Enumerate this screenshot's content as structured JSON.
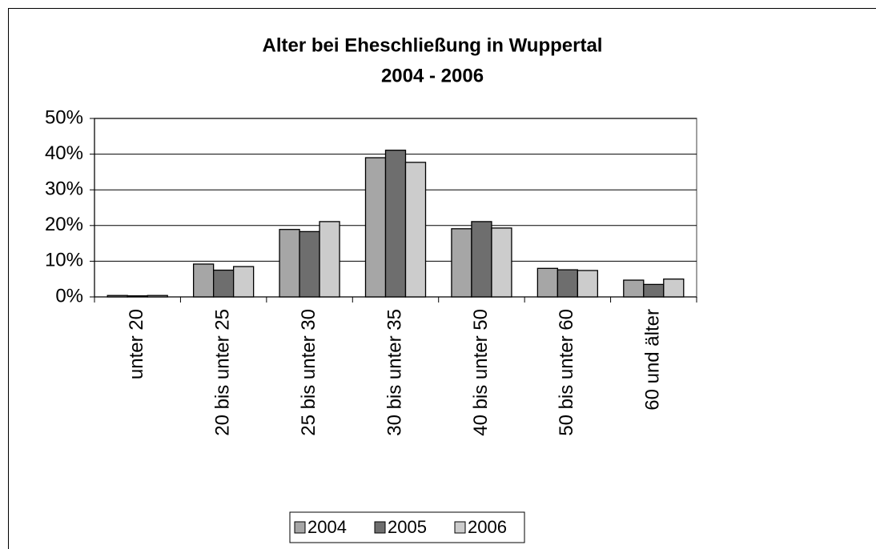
{
  "chart_data": {
    "type": "bar",
    "title": [
      "Alter bei Eheschließung in Wuppertal",
      "2004 - 2006"
    ],
    "categories": [
      "unter 20",
      "20 bis unter 25",
      "25 bis unter 30",
      "30 bis unter 35",
      "40 bis unter 50",
      "50 bis unter 60",
      "60 und älter"
    ],
    "series": [
      {
        "name": "2004",
        "color": "#a6a6a6",
        "values": [
          0.4,
          9.2,
          18.9,
          39.0,
          19.1,
          8.0,
          4.7
        ]
      },
      {
        "name": "2005",
        "color": "#6e6e6e",
        "values": [
          0.3,
          7.5,
          18.3,
          41.1,
          21.1,
          7.6,
          3.5
        ]
      },
      {
        "name": "2006",
        "color": "#cccccc",
        "values": [
          0.4,
          8.5,
          21.1,
          37.7,
          19.3,
          7.4,
          5.0
        ]
      }
    ],
    "ylim": [
      0,
      50
    ],
    "yticks": [
      {
        "value": 0,
        "label": "0%"
      },
      {
        "value": 10,
        "label": "10%"
      },
      {
        "value": 20,
        "label": "20%"
      },
      {
        "value": 30,
        "label": "30%"
      },
      {
        "value": 40,
        "label": "40%"
      },
      {
        "value": 50,
        "label": "50%"
      }
    ],
    "grid": true,
    "legend": "bottom"
  }
}
